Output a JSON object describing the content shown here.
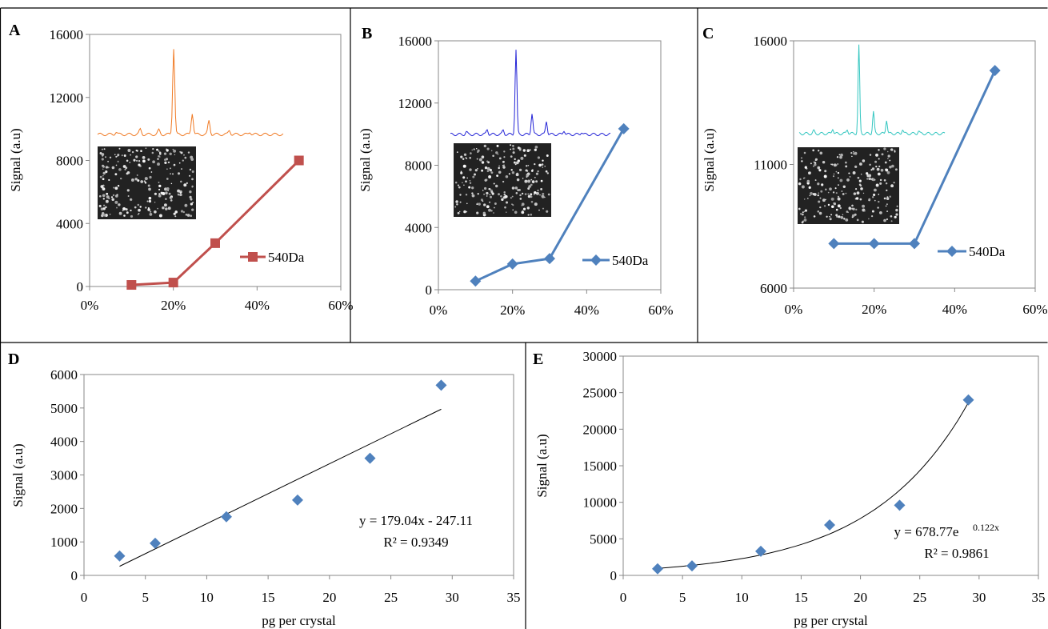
{
  "figure": {
    "panel_letters": [
      "A",
      "B",
      "C",
      "D",
      "E"
    ]
  },
  "chart_data": [
    {
      "panel": "A",
      "type": "line",
      "ylabel": "Signal (a.u)",
      "xlabel": "",
      "x": [
        0.1,
        0.2,
        0.3,
        0.5
      ],
      "xticks": [
        "0%",
        "20%",
        "40%",
        "60%"
      ],
      "xlim": [
        0,
        0.6
      ],
      "yticks": [
        0,
        4000,
        8000,
        12000,
        16000
      ],
      "ylim": [
        0,
        16000
      ],
      "series": [
        {
          "name": "540Da",
          "values": [
            100,
            250,
            2750,
            8000
          ],
          "color": "#c0504d",
          "marker": "square"
        }
      ],
      "legend": "right",
      "inset_spectrum_color": "#f07a24",
      "inset_image_desc": "microscopy"
    },
    {
      "panel": "B",
      "type": "line",
      "ylabel": "Signal (a.u)",
      "xlabel": "",
      "x": [
        0.1,
        0.2,
        0.3,
        0.5
      ],
      "xticks": [
        "0%",
        "20%",
        "40%",
        "60%"
      ],
      "xlim": [
        0,
        0.6
      ],
      "yticks": [
        0,
        4000,
        8000,
        12000,
        16000
      ],
      "ylim": [
        0,
        16000
      ],
      "series": [
        {
          "name": "540Da",
          "values": [
            550,
            1650,
            2000,
            10350
          ],
          "color": "#4f81bd",
          "marker": "diamond"
        }
      ],
      "legend": "right",
      "inset_spectrum_color": "#2323d6"
    },
    {
      "panel": "C",
      "type": "line",
      "ylabel": "Signal (a.u)",
      "xlabel": "",
      "x": [
        0.1,
        0.2,
        0.3,
        0.5
      ],
      "xticks": [
        "0%",
        "20%",
        "40%",
        "60%"
      ],
      "xlim": [
        0,
        0.6
      ],
      "yticks": [
        6000,
        11000,
        16000
      ],
      "ylim": [
        6000,
        16000
      ],
      "series": [
        {
          "name": "540Da",
          "values": [
            7800,
            7800,
            7800,
            14800
          ],
          "color": "#4f81bd",
          "marker": "diamond"
        }
      ],
      "legend": "right",
      "inset_spectrum_color": "#33c6c0"
    },
    {
      "panel": "D",
      "type": "scatter",
      "ylabel": "Signal (a.u)",
      "xlabel": "pg per crystal",
      "x": [
        2.9,
        5.8,
        11.6,
        17.4,
        23.3,
        29.1
      ],
      "y": [
        580,
        960,
        1750,
        2250,
        3500,
        5680
      ],
      "xticks": [
        "0",
        "5",
        "10",
        "15",
        "20",
        "25",
        "30",
        "35"
      ],
      "xlim": [
        0,
        35
      ],
      "yticks": [
        0,
        1000,
        2000,
        3000,
        4000,
        5000,
        6000
      ],
      "ylim": [
        0,
        6000
      ],
      "trendline": {
        "type": "linear",
        "slope": 179.04,
        "intercept": -247.11
      },
      "equation": "y = 179.04x - 247.11",
      "r2": "R² = 0.9349",
      "marker_color": "#4f81bd"
    },
    {
      "panel": "E",
      "type": "scatter",
      "ylabel": "Signal (a.u)",
      "xlabel": "pg per crystal",
      "x": [
        2.9,
        5.8,
        11.6,
        17.4,
        23.3,
        29.1
      ],
      "y": [
        900,
        1300,
        3300,
        6900,
        9600,
        24000
      ],
      "xticks": [
        "0",
        "5",
        "10",
        "15",
        "20",
        "25",
        "30",
        "35"
      ],
      "xlim": [
        0,
        35
      ],
      "yticks": [
        0,
        5000,
        10000,
        15000,
        20000,
        25000,
        30000
      ],
      "ylim": [
        0,
        30000
      ],
      "trendline": {
        "type": "exponential",
        "a": 678.77,
        "b": 0.122
      },
      "equation_base": "y = 678.77e",
      "equation_exp": "0.122x",
      "r2": "R² = 0.9861",
      "marker_color": "#4f81bd"
    }
  ]
}
